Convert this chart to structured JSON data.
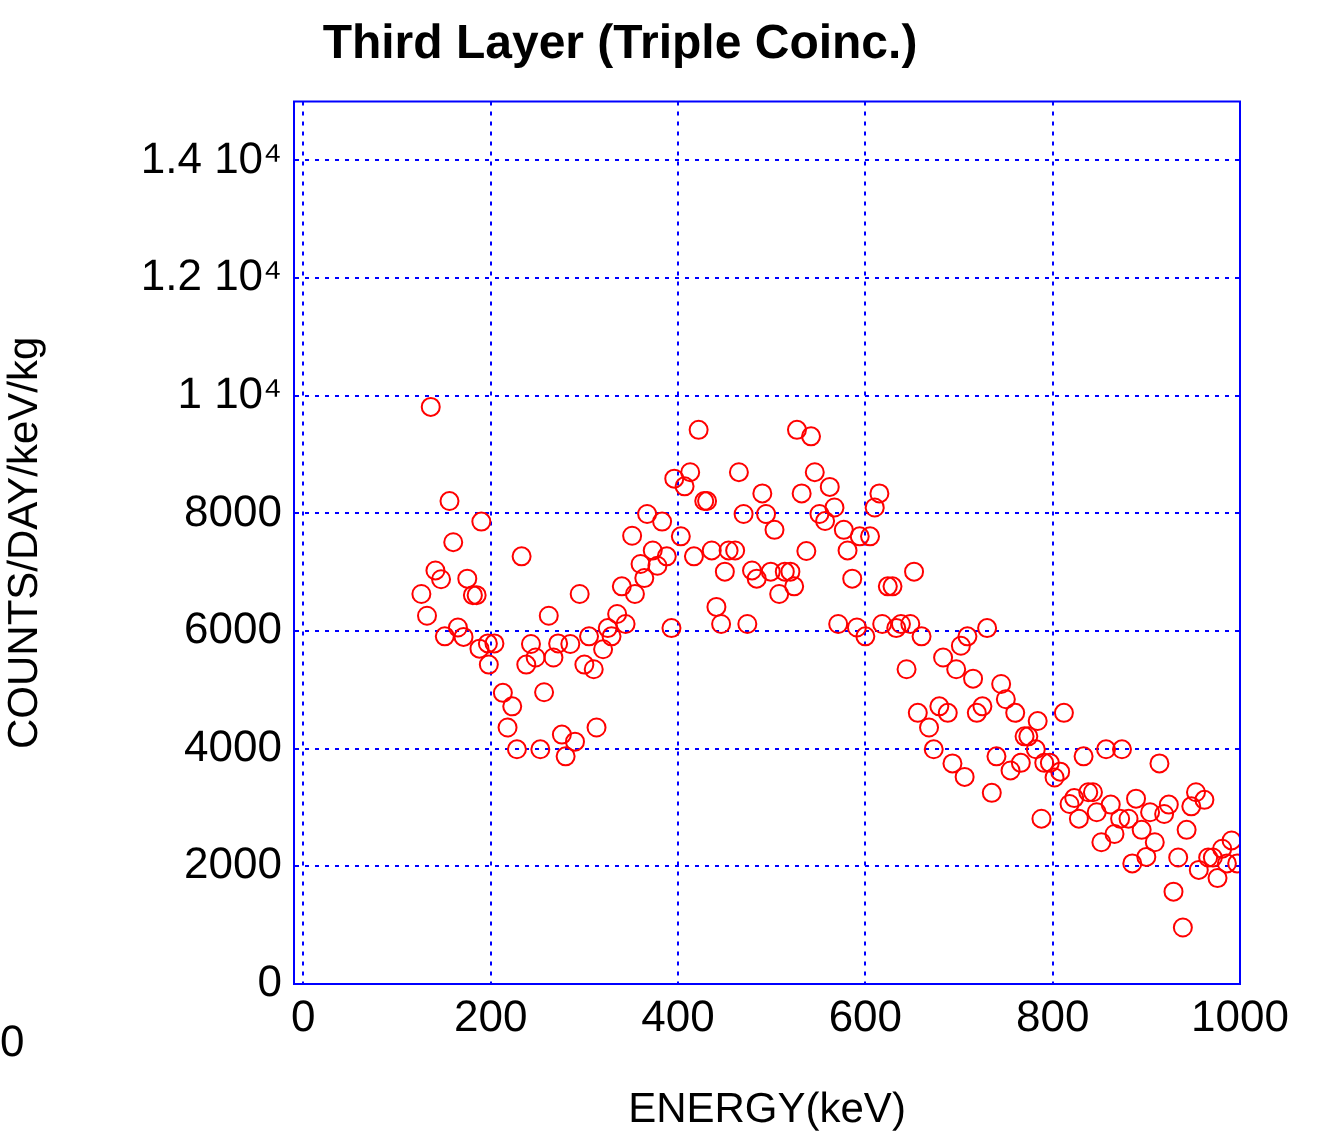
{
  "chart_data": {
    "type": "scatter",
    "title": "Third Layer (Triple Coinc.)",
    "xlabel": "ENERGY(keV)",
    "ylabel": "COUNTS/DAY/keV/kg",
    "annotations": [
      "0"
    ],
    "xlim": [
      -10,
      1000
    ],
    "xticks": [
      0,
      200,
      400,
      600,
      800,
      1000
    ],
    "ylim": [
      0,
      15000
    ],
    "yticks": [
      0,
      2000,
      4000,
      6000,
      8000,
      {
        "value": 10000,
        "label": "1 10⁴"
      },
      {
        "value": 12000,
        "label": "1.2 10⁴"
      },
      {
        "value": 14000,
        "label": "1.4 10⁴"
      }
    ],
    "grid": true,
    "marker": "circle",
    "series": [
      {
        "color": "#ff0000",
        "x": [
          126,
          132,
          136,
          141,
          147,
          151,
          156,
          160,
          165,
          171,
          175,
          181,
          185,
          188,
          190,
          197,
          198,
          204,
          213,
          218,
          223,
          228,
          233,
          238,
          243,
          248,
          253,
          257,
          262,
          267,
          272,
          276,
          280,
          285,
          290,
          295,
          300,
          305,
          310,
          313,
          320,
          325,
          329,
          335,
          340,
          344,
          351,
          354,
          360,
          364,
          367,
          373,
          378,
          383,
          388,
          393,
          396,
          403,
          407,
          413,
          417,
          422,
          428,
          431,
          436,
          441,
          446,
          450,
          454,
          461,
          465,
          470,
          474,
          479,
          484,
          490,
          494,
          499,
          503,
          508,
          514,
          520,
          524,
          527,
          532,
          537,
          542,
          546,
          551,
          557,
          562,
          567,
          571,
          577,
          581,
          586,
          591,
          594,
          600,
          605,
          610,
          615,
          618,
          624,
          629,
          633,
          638,
          644,
          648,
          652,
          656,
          660,
          668,
          673,
          679,
          683,
          688,
          693,
          697,
          702,
          706,
          709,
          715,
          719,
          725,
          730,
          735,
          740,
          745,
          750,
          755,
          760,
          766,
          770,
          774,
          782,
          784,
          788,
          791,
          797,
          802,
          808,
          812,
          818,
          823,
          828,
          833,
          838,
          843,
          847,
          852,
          857,
          862,
          866,
          872,
          874,
          881,
          885,
          889,
          895,
          900,
          904,
          909,
          914,
          919,
          924,
          929,
          934,
          939,
          943,
          948,
          953,
          956,
          962,
          966,
          971,
          976,
          981,
          986,
          991,
          997
        ],
        "values": [
          6630,
          6260,
          9810,
          7030,
          6880,
          5910,
          8210,
          7510,
          6060,
          5900,
          6890,
          6610,
          6610,
          5700,
          7860,
          5790,
          5430,
          5790,
          4950,
          4360,
          4720,
          3990,
          7270,
          5430,
          5780,
          5550,
          3990,
          4960,
          6260,
          5550,
          5790,
          4240,
          3870,
          5780,
          4120,
          6630,
          5430,
          5910,
          5350,
          4360,
          5690,
          6050,
          5910,
          6290,
          6760,
          6120,
          7620,
          6630,
          7140,
          6900,
          7990,
          7370,
          7110,
          7860,
          7270,
          6050,
          8590,
          7610,
          8460,
          8700,
          7270,
          9420,
          8210,
          8210,
          7370,
          6410,
          6120,
          7010,
          7370,
          7370,
          8700,
          7990,
          6120,
          7030,
          6890,
          8340,
          7990,
          7010,
          7720,
          6630,
          7010,
          7010,
          6760,
          9420,
          8340,
          7360,
          9310,
          8700,
          7990,
          7870,
          8450,
          8100,
          6120,
          7720,
          7370,
          6890,
          6060,
          7610,
          5910,
          7610,
          8100,
          8340,
          6120,
          6760,
          6760,
          6050,
          6120,
          5350,
          6120,
          7010,
          4610,
          5910,
          4360,
          3990,
          4720,
          5550,
          4610,
          3750,
          5350,
          5750,
          3520,
          5910,
          5190,
          4610,
          4720,
          6050,
          3250,
          3870,
          5100,
          4840,
          3630,
          4610,
          3760,
          4210,
          4210,
          3990,
          4470,
          2810,
          3760,
          3760,
          3510,
          3610,
          4610,
          3060,
          3160,
          2810,
          3870,
          3260,
          3260,
          2920,
          2410,
          3990,
          3050,
          2550,
          2810,
          3990,
          2810,
          2050,
          3150,
          2620,
          2160,
          2920,
          2410,
          3750,
          2890,
          3050,
          1570,
          2150,
          960,
          2620,
          3020,
          3260,
          1940,
          3130,
          2150,
          2150,
          1800,
          2300,
          2050,
          2440,
          2050
        ]
      }
    ]
  }
}
